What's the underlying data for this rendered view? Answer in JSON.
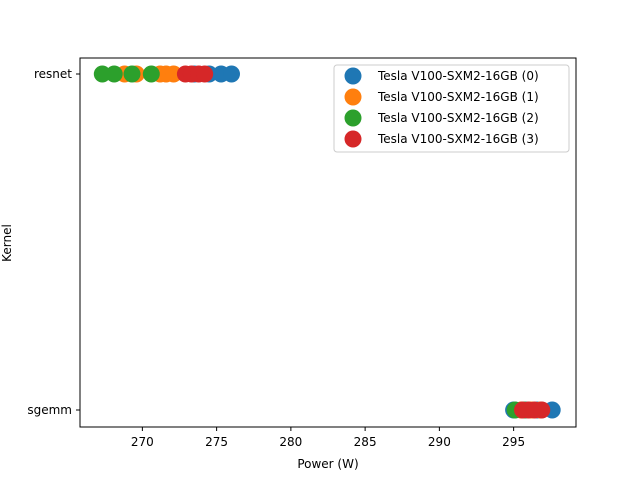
{
  "chart_data": {
    "type": "scatter",
    "title": "",
    "xlabel": "Power (W)",
    "ylabel": "Kernel",
    "xlim": [
      265.8,
      299.2
    ],
    "x_ticks": [
      270,
      275,
      280,
      285,
      290,
      295
    ],
    "y_categories": [
      "sgemm",
      "resnet"
    ],
    "grid": false,
    "legend_position": "top-right",
    "series": [
      {
        "name": "Tesla V100-SXM2-16GB (0)",
        "color": "#1f77b4",
        "points": [
          {
            "x": 273.5,
            "y": "resnet"
          },
          {
            "x": 274.5,
            "y": "resnet"
          },
          {
            "x": 275.3,
            "y": "resnet"
          },
          {
            "x": 276.0,
            "y": "resnet"
          },
          {
            "x": 295.0,
            "y": "sgemm"
          },
          {
            "x": 295.8,
            "y": "sgemm"
          },
          {
            "x": 296.6,
            "y": "sgemm"
          },
          {
            "x": 297.6,
            "y": "sgemm"
          }
        ]
      },
      {
        "name": "Tesla V100-SXM2-16GB (1)",
        "color": "#ff7f0e",
        "points": [
          {
            "x": 268.8,
            "y": "resnet"
          },
          {
            "x": 269.6,
            "y": "resnet"
          },
          {
            "x": 271.2,
            "y": "resnet"
          },
          {
            "x": 271.6,
            "y": "resnet"
          },
          {
            "x": 272.1,
            "y": "resnet"
          },
          {
            "x": 295.5,
            "y": "sgemm"
          },
          {
            "x": 296.2,
            "y": "sgemm"
          },
          {
            "x": 296.8,
            "y": "sgemm"
          }
        ]
      },
      {
        "name": "Tesla V100-SXM2-16GB (2)",
        "color": "#2ca02c",
        "points": [
          {
            "x": 267.3,
            "y": "resnet"
          },
          {
            "x": 268.1,
            "y": "resnet"
          },
          {
            "x": 269.3,
            "y": "resnet"
          },
          {
            "x": 270.6,
            "y": "resnet"
          },
          {
            "x": 295.1,
            "y": "sgemm"
          },
          {
            "x": 295.7,
            "y": "sgemm"
          }
        ]
      },
      {
        "name": "Tesla V100-SXM2-16GB (3)",
        "color": "#d62728",
        "points": [
          {
            "x": 272.9,
            "y": "resnet"
          },
          {
            "x": 273.3,
            "y": "resnet"
          },
          {
            "x": 273.8,
            "y": "resnet"
          },
          {
            "x": 274.2,
            "y": "resnet"
          },
          {
            "x": 295.6,
            "y": "sgemm"
          },
          {
            "x": 296.0,
            "y": "sgemm"
          },
          {
            "x": 296.4,
            "y": "sgemm"
          },
          {
            "x": 296.9,
            "y": "sgemm"
          }
        ]
      }
    ]
  }
}
